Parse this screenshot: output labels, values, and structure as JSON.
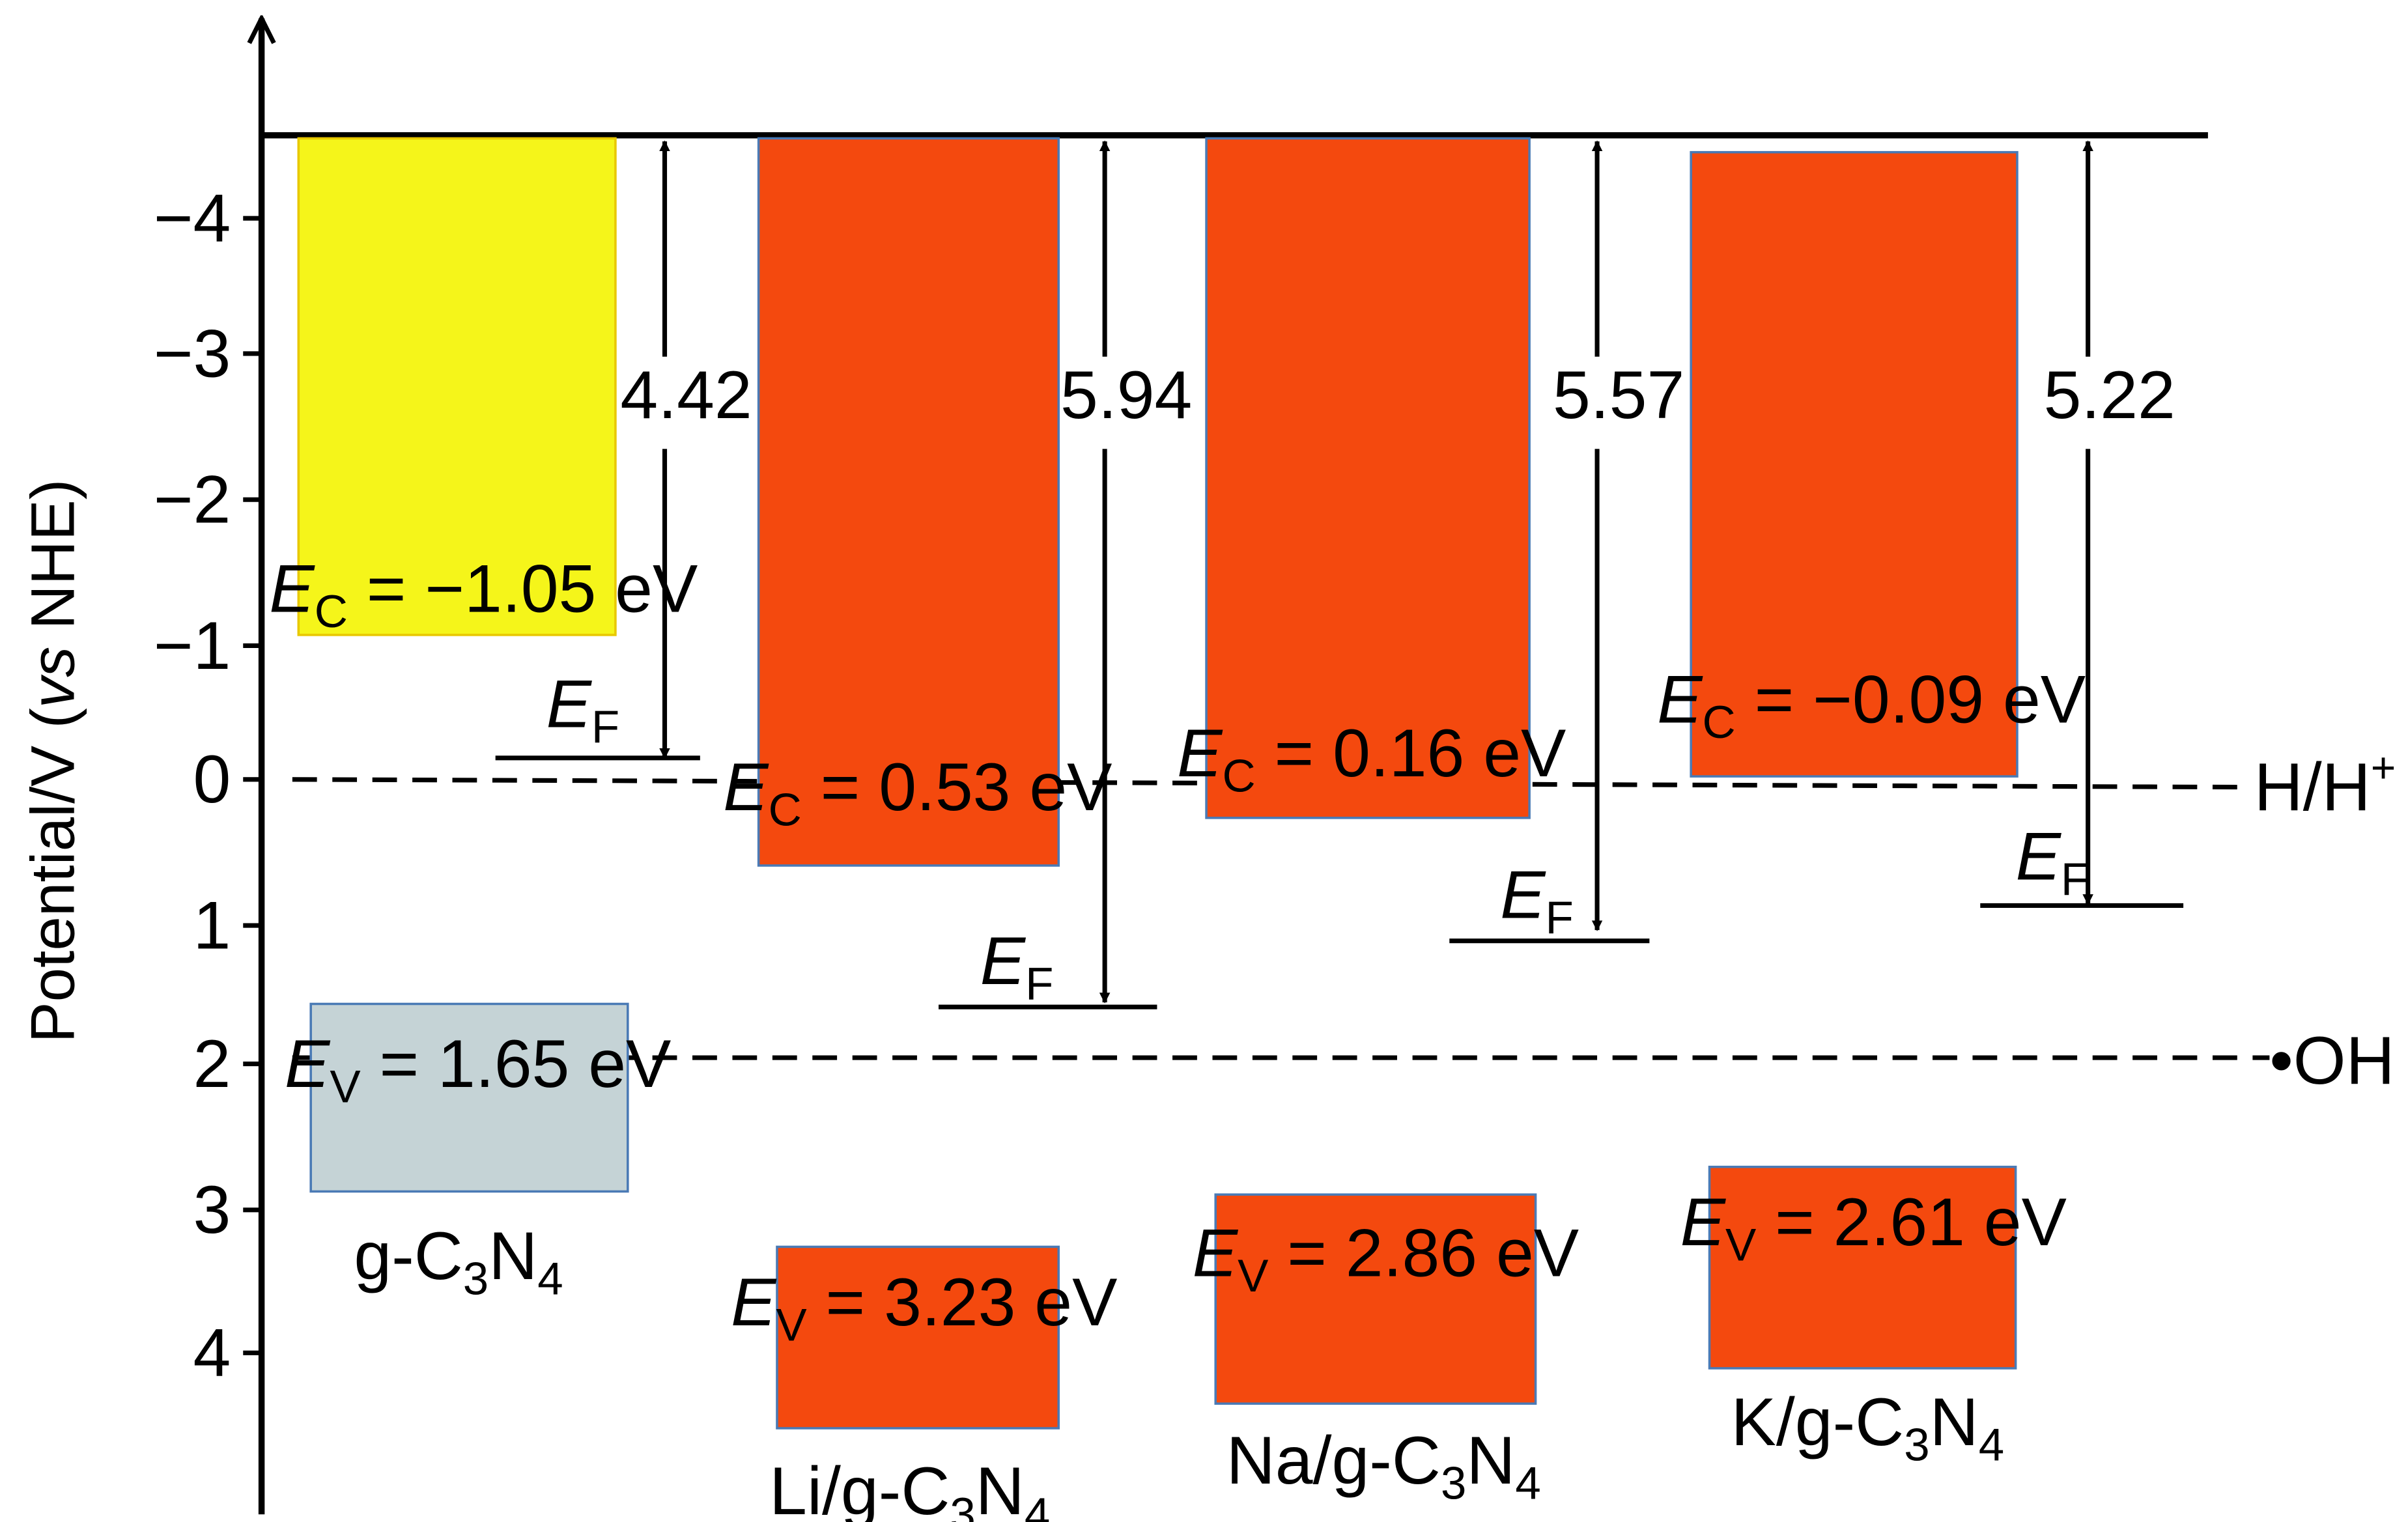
{
  "y_axis": {
    "label": [
      "Potential/V (",
      "vs",
      " NHE)"
    ],
    "ticks": [
      "−4",
      "−3",
      "−2",
      "−1",
      "0",
      "1",
      "2",
      "3",
      "4"
    ]
  },
  "materials": [
    {
      "name": [
        "g-C",
        "3",
        "N",
        "4"
      ],
      "conduction_band": [
        "E",
        "C",
        " = −1.05 eV"
      ],
      "valence_band": [
        "E",
        "V",
        " = 1.65 eV"
      ],
      "fermi_level": [
        "E",
        "F"
      ],
      "gap": "4.42"
    },
    {
      "name": [
        "Li/g-C",
        "3",
        "N",
        "4"
      ],
      "conduction_band": [
        "E",
        "C",
        " = 0.53 eV"
      ],
      "valence_band": [
        "E",
        "V",
        " = 3.23 eV"
      ],
      "fermi_level": [
        "E",
        "F"
      ],
      "gap": "5.94"
    },
    {
      "name": [
        "Na/g-C",
        "3",
        "N",
        "4"
      ],
      "conduction_band": [
        "E",
        "C",
        " = 0.16 eV"
      ],
      "valence_band": [
        "E",
        "V",
        " = 2.86 eV"
      ],
      "fermi_level": [
        "E",
        "F"
      ],
      "gap": "5.57"
    },
    {
      "name": [
        "K/g-C",
        "3",
        "N",
        "4"
      ],
      "conduction_band": [
        "E",
        "C",
        " = −0.09 eV"
      ],
      "valence_band": [
        "E",
        "V",
        " = 2.61 eV"
      ],
      "fermi_level": [
        "E",
        "F"
      ],
      "gap": "5.22"
    }
  ],
  "references": [
    [
      "H/H",
      "+"
    ],
    [
      "•OH"
    ]
  ]
}
